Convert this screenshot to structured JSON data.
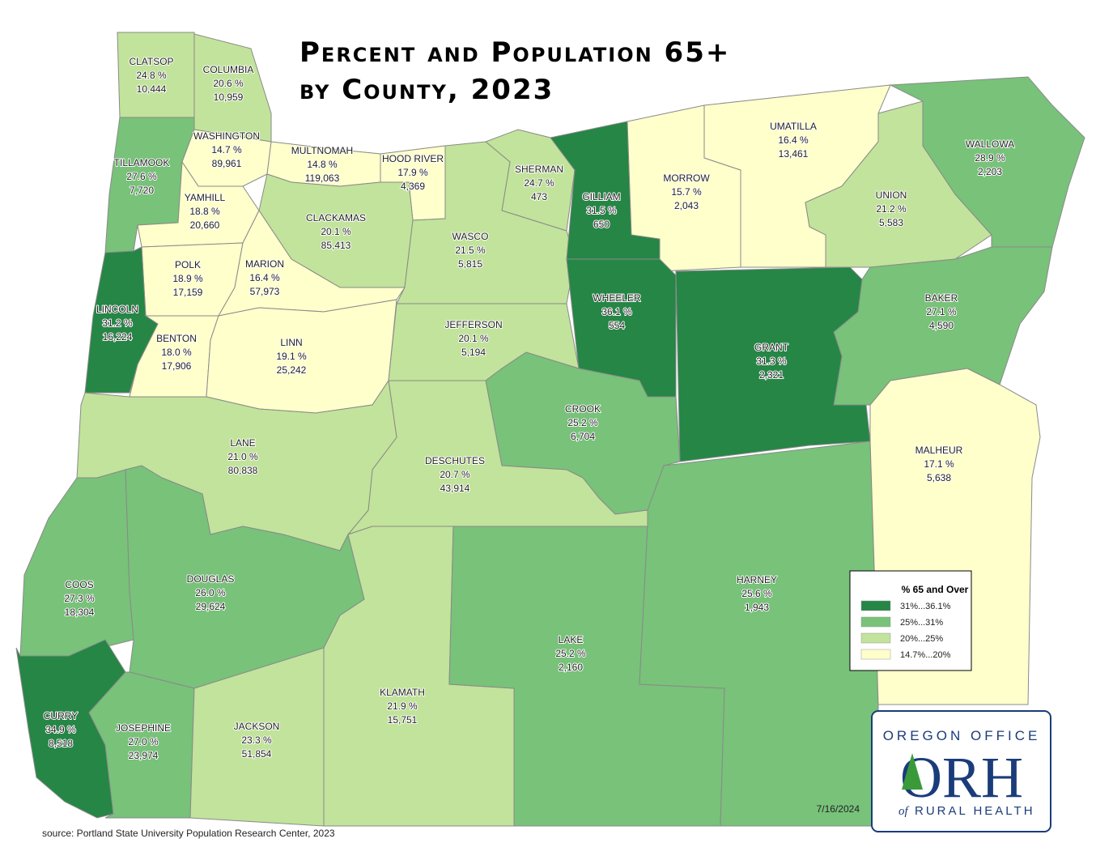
{
  "title": [
    "Percent and Population 65+",
    "by County, 2023"
  ],
  "counties": [
    {
      "name": "CLATSOP",
      "percent": "24.8 %",
      "population": "10,444",
      "color": "#c2e39b"
    },
    {
      "name": "COLUMBIA",
      "percent": "20.6 %",
      "population": "10,959",
      "color": "#c2e39b"
    },
    {
      "name": "TILLAMOOK",
      "percent": "27.6 %",
      "population": "7,720",
      "color": "#78c27a"
    },
    {
      "name": "WASHINGTON",
      "percent": "14.7 %",
      "population": "89,961",
      "color": "#ffffcc"
    },
    {
      "name": "MULTNOMAH",
      "percent": "14.8 %",
      "population": "119,063",
      "color": "#ffffcc"
    },
    {
      "name": "HOOD RIVER",
      "percent": "17.9 %",
      "population": "4,369",
      "color": "#ffffcc"
    },
    {
      "name": "YAMHILL",
      "percent": "18.8 %",
      "population": "20,660",
      "color": "#ffffcc"
    },
    {
      "name": "CLACKAMAS",
      "percent": "20.1 %",
      "population": "85,413",
      "color": "#c2e39b"
    },
    {
      "name": "POLK",
      "percent": "18.9 %",
      "population": "17,159",
      "color": "#ffffcc"
    },
    {
      "name": "MARION",
      "percent": "16.4 %",
      "population": "57,973",
      "color": "#ffffcc"
    },
    {
      "name": "LINCOLN",
      "percent": "31.2 %",
      "population": "16,224",
      "color": "#258646"
    },
    {
      "name": "BENTON",
      "percent": "18.0 %",
      "population": "17,906",
      "color": "#ffffcc"
    },
    {
      "name": "LINN",
      "percent": "19.1 %",
      "population": "25,242",
      "color": "#ffffcc"
    },
    {
      "name": "SHERMAN",
      "percent": "24.7 %",
      "population": "473",
      "color": "#c2e39b"
    },
    {
      "name": "WASCO",
      "percent": "21.5 %",
      "population": "5,815",
      "color": "#c2e39b"
    },
    {
      "name": "GILLIAM",
      "percent": "31.5 %",
      "population": "650",
      "color": "#258646"
    },
    {
      "name": "MORROW",
      "percent": "15.7 %",
      "population": "2,043",
      "color": "#ffffcc"
    },
    {
      "name": "UMATILLA",
      "percent": "16.4 %",
      "population": "13,461",
      "color": "#ffffcc"
    },
    {
      "name": "UNION",
      "percent": "21.2 %",
      "population": "5,583",
      "color": "#c2e39b"
    },
    {
      "name": "WALLOWA",
      "percent": "28.9 %",
      "population": "2,203",
      "color": "#78c27a"
    },
    {
      "name": "BAKER",
      "percent": "27.1 %",
      "population": "4,590",
      "color": "#78c27a"
    },
    {
      "name": "WHEELER",
      "percent": "36.1 %",
      "population": "554",
      "color": "#258646"
    },
    {
      "name": "GRANT",
      "percent": "31.3 %",
      "population": "2,321",
      "color": "#258646"
    },
    {
      "name": "JEFFERSON",
      "percent": "20.1 %",
      "population": "5,194",
      "color": "#c2e39b"
    },
    {
      "name": "CROOK",
      "percent": "25.2 %",
      "population": "6,704",
      "color": "#78c27a"
    },
    {
      "name": "DESCHUTES",
      "percent": "20.7 %",
      "population": "43,914",
      "color": "#c2e39b"
    },
    {
      "name": "LANE",
      "percent": "21.0 %",
      "population": "80,838",
      "color": "#c2e39b"
    },
    {
      "name": "COOS",
      "percent": "27.3 %",
      "population": "18,304",
      "color": "#78c27a"
    },
    {
      "name": "DOUGLAS",
      "percent": "26.0 %",
      "population": "29,624",
      "color": "#78c27a"
    },
    {
      "name": "CURRY",
      "percent": "34.9 %",
      "population": "8,518",
      "color": "#258646"
    },
    {
      "name": "JOSEPHINE",
      "percent": "27.0 %",
      "population": "23,974",
      "color": "#78c27a"
    },
    {
      "name": "JACKSON",
      "percent": "23.3 %",
      "population": "51,854",
      "color": "#c2e39b"
    },
    {
      "name": "KLAMATH",
      "percent": "21.9 %",
      "population": "15,751",
      "color": "#c2e39b"
    },
    {
      "name": "LAKE",
      "percent": "25.2 %",
      "population": "2,160",
      "color": "#78c27a"
    },
    {
      "name": "HARNEY",
      "percent": "25.6 %",
      "population": "1,943",
      "color": "#78c27a"
    },
    {
      "name": "MALHEUR",
      "percent": "17.1 %",
      "population": "5,638",
      "color": "#ffffcc"
    }
  ],
  "legend": {
    "title": "% 65 and Over",
    "items": [
      {
        "label": "31%...36.1%",
        "color": "#258646"
      },
      {
        "label": "25%...31%",
        "color": "#78c27a"
      },
      {
        "label": "20%...25%",
        "color": "#c2e39b"
      },
      {
        "label": "14.7%...20%",
        "color": "#ffffcc"
      }
    ]
  },
  "date": "7/16/2024",
  "source": "source: Portland State University Population Research Center, 2023",
  "logo": {
    "top": "OREGON OFFICE",
    "mark": "ORH",
    "bottom_prefix": "of",
    "bottom": "RURAL HEALTH"
  }
}
